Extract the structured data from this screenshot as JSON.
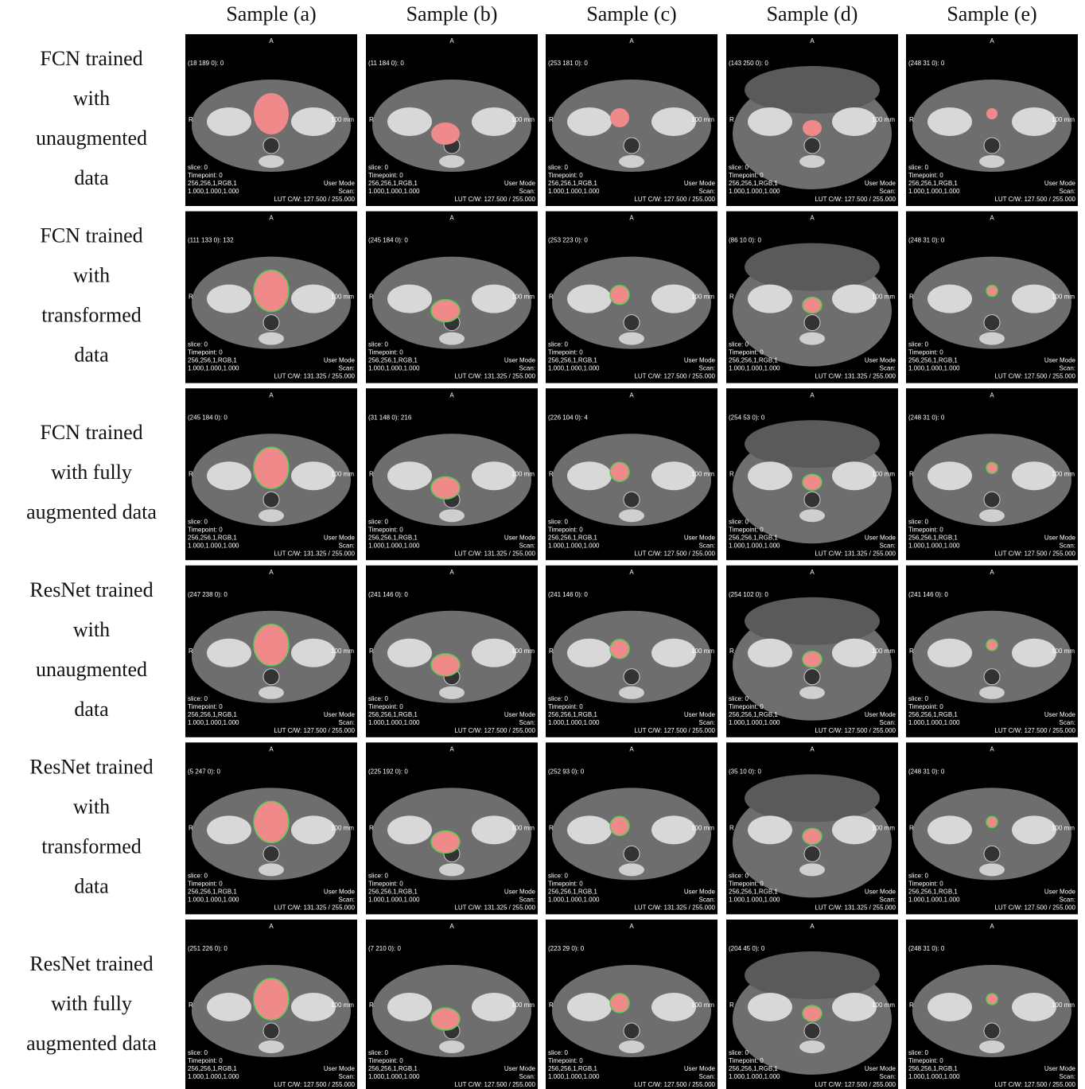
{
  "figure": {
    "columns": [
      "Sample (a)",
      "Sample (b)",
      "Sample (c)",
      "Sample (d)",
      "Sample (e)"
    ],
    "overlay": {
      "top": "A",
      "side": "R",
      "scale": "100 mm",
      "slice": "slice:  0",
      "timepoint": "Timepoint: 0",
      "dims": "256,256,1,RGB,1",
      "spacing": "1.000,1.000,1.000",
      "mode": "User Mode",
      "scan": "Scan:"
    },
    "rows": [
      {
        "label": [
          "FCN trained",
          "with",
          "unaugmented",
          "data"
        ],
        "cells": [
          {
            "coord": "(18 189 0): 0",
            "lut": "LUT C/W: 127.500 / 255.000"
          },
          {
            "coord": "(11 184 0): 0",
            "lut": "LUT C/W: 127.500 / 255.000"
          },
          {
            "coord": "(253 181 0): 0",
            "lut": "LUT C/W: 127.500 / 255.000"
          },
          {
            "coord": "(143 250 0): 0",
            "lut": "LUT C/W: 127.500 / 255.000"
          },
          {
            "coord": "(248 31 0): 0",
            "lut": "LUT C/W: 127.500 / 255.000"
          }
        ]
      },
      {
        "label": [
          "FCN trained",
          "with",
          "transformed",
          "data"
        ],
        "cells": [
          {
            "coord": "(111 133 0): 132",
            "lut": "LUT C/W: 131.325 / 255.000"
          },
          {
            "coord": "(245 184 0): 0",
            "lut": "LUT C/W: 131.325 / 255.000"
          },
          {
            "coord": "(253 223 0): 0",
            "lut": "LUT C/W: 127.500 / 255.000"
          },
          {
            "coord": "(86 10 0): 0",
            "lut": "LUT C/W: 131.325 / 255.000"
          },
          {
            "coord": "(248 31 0): 0",
            "lut": "LUT C/W: 127.500 / 255.000"
          }
        ]
      },
      {
        "label": [
          "FCN trained",
          "with fully",
          "augmented data"
        ],
        "cells": [
          {
            "coord": "(245 184 0): 0",
            "lut": "LUT C/W: 131.325 / 255.000"
          },
          {
            "coord": "(31 148 0): 216",
            "lut": "LUT C/W: 131.325 / 255.000"
          },
          {
            "coord": "(226 104 0): 4",
            "lut": "LUT C/W: 127.500 / 255.000"
          },
          {
            "coord": "(254 53 0): 0",
            "lut": "LUT C/W: 131.325 / 255.000"
          },
          {
            "coord": "(248 31 0): 0",
            "lut": "LUT C/W: 127.500 / 255.000"
          }
        ]
      },
      {
        "label": [
          "ResNet trained",
          "with",
          "unaugmented",
          "data"
        ],
        "cells": [
          {
            "coord": "(247 238 0): 0",
            "lut": "LUT C/W: 127.500 / 255.000"
          },
          {
            "coord": "(241 146 0): 0",
            "lut": "LUT C/W: 127.500 / 255.000"
          },
          {
            "coord": "(241 146 0): 0",
            "lut": "LUT C/W: 127.500 / 255.000"
          },
          {
            "coord": "(254 102 0): 0",
            "lut": "LUT C/W: 127.500 / 255.000"
          },
          {
            "coord": "(241 146 0): 0",
            "lut": "LUT C/W: 127.500 / 255.000"
          }
        ]
      },
      {
        "label": [
          "ResNet trained",
          "with",
          "transformed",
          "data"
        ],
        "cells": [
          {
            "coord": "(5 247 0): 0",
            "lut": "LUT C/W: 131.325 / 255.000"
          },
          {
            "coord": "(225 192 0): 0",
            "lut": "LUT C/W: 131.325 / 255.000"
          },
          {
            "coord": "(252 93 0): 0",
            "lut": "LUT C/W: 131.325 / 255.000"
          },
          {
            "coord": "(35 10 0): 0",
            "lut": "LUT C/W: 131.325 / 255.000"
          },
          {
            "coord": "(248 31 0): 0",
            "lut": "LUT C/W: 127.500 / 255.000"
          }
        ]
      },
      {
        "label": [
          "ResNet trained",
          "with fully",
          "augmented data"
        ],
        "cells": [
          {
            "coord": "(251 226 0): 0",
            "lut": "LUT C/W: 127.500 / 255.000"
          },
          {
            "coord": "(7 210 0): 0",
            "lut": "LUT C/W: 127.500 / 255.000"
          },
          {
            "coord": "(223 29 0): 0",
            "lut": "LUT C/W: 127.500 / 255.000"
          },
          {
            "coord": "(204 45 0): 0",
            "lut": "LUT C/W: 127.500 / 255.000"
          },
          {
            "coord": "(248 31 0): 0",
            "lut": "LUT C/W: 127.500 / 255.000"
          }
        ]
      }
    ]
  }
}
